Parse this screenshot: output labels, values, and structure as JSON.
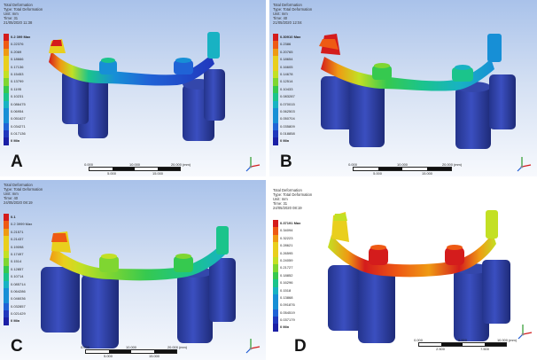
{
  "colors": {
    "contour_scale": [
      "#d41c1c",
      "#ee5a14",
      "#ef9a13",
      "#e9cf1d",
      "#c3e024",
      "#7fd631",
      "#36c94f",
      "#1bc48b",
      "#18b2c3",
      "#178fd6",
      "#2063d6",
      "#2037bd",
      "#1b1fa6"
    ],
    "post": "#2a3c9e",
    "background_top": "#a9c2ea",
    "background_bottom": "#f7f9fd"
  },
  "panels": [
    {
      "letter": "A",
      "header": [
        "Total Deformation",
        "Type: Total Deformation",
        "Unit: mm",
        "Time: 31",
        "21/05/2020 11:38"
      ],
      "legend": [
        "0.2 399 Max",
        "0.22376",
        "0.2069",
        "0.18666",
        "0.17136",
        "0.15453",
        "0.13799",
        "0.1195",
        "0.10231",
        "0.086475",
        "0.06954",
        "0.051627",
        "0.034271",
        "0.017136",
        "0 Min"
      ],
      "scalebar": {
        "top": [
          "0.000",
          "10.000",
          "20.000 (mm)"
        ],
        "bottom": [
          "5.000",
          "15.000"
        ]
      },
      "triad": [
        "x",
        "y",
        "z"
      ]
    },
    {
      "letter": "B",
      "header": [
        "Total Deformation",
        "Type: Total Deformation",
        "Unit: mm",
        "Time: 40",
        "21/05/2020 12:04"
      ],
      "legend": [
        "0.30910 Max",
        "0.2386",
        "0.20765",
        "0.18654",
        "0.16605",
        "0.14678",
        "0.12514",
        "0.10433",
        "0.083287",
        "0.070015",
        "0.062503",
        "0.050704",
        "0.035809",
        "0.018858",
        "0 Min"
      ],
      "scalebar": {
        "top": [
          "0.000",
          "10.000",
          "20.000 (mm)"
        ],
        "bottom": [
          "5.000",
          "15.000"
        ]
      },
      "triad": [
        "x",
        "y",
        "z"
      ]
    },
    {
      "letter": "C",
      "header": [
        "Total Deformation",
        "Type: Total Deformation",
        "Unit: mm",
        "Time: 40",
        "24/05/2020 08:19"
      ],
      "legend": [
        "0.1",
        "0.2 3999 Max",
        "0.21571",
        "0.21437",
        "0.19098",
        "0.17497",
        "0.1514",
        "0.12857",
        "0.10714",
        "0.085714",
        "0.064286",
        "0.046036",
        "0.032857",
        "0.021429",
        "0 Min"
      ],
      "scalebar": {
        "top": [
          "0.000",
          "10.000",
          "20.000 (mm)"
        ],
        "bottom": [
          "5.000",
          "15.000"
        ]
      },
      "triad": [
        "x",
        "y",
        "z"
      ]
    },
    {
      "letter": "D",
      "header": [
        "Total Deformation",
        "Type: Total Deformation",
        "Unit: mm",
        "Time: 31",
        "24/05/2020 08:19"
      ],
      "legend": [
        "0.37191 Max",
        "0.34094",
        "0.32223",
        "0.28621",
        "0.26595",
        "0.24059",
        "0.21727",
        "0.18852",
        "0.16296",
        "0.1518",
        "0.13868",
        "0.091876",
        "0.054519",
        "0.037179",
        "0 Min"
      ],
      "scalebar": {
        "top": [
          "0.000",
          "5.000",
          "10.000 (mm)"
        ],
        "bottom": [
          "2.500",
          "7.500"
        ]
      },
      "triad": [
        "x",
        "y",
        "z"
      ]
    }
  ]
}
